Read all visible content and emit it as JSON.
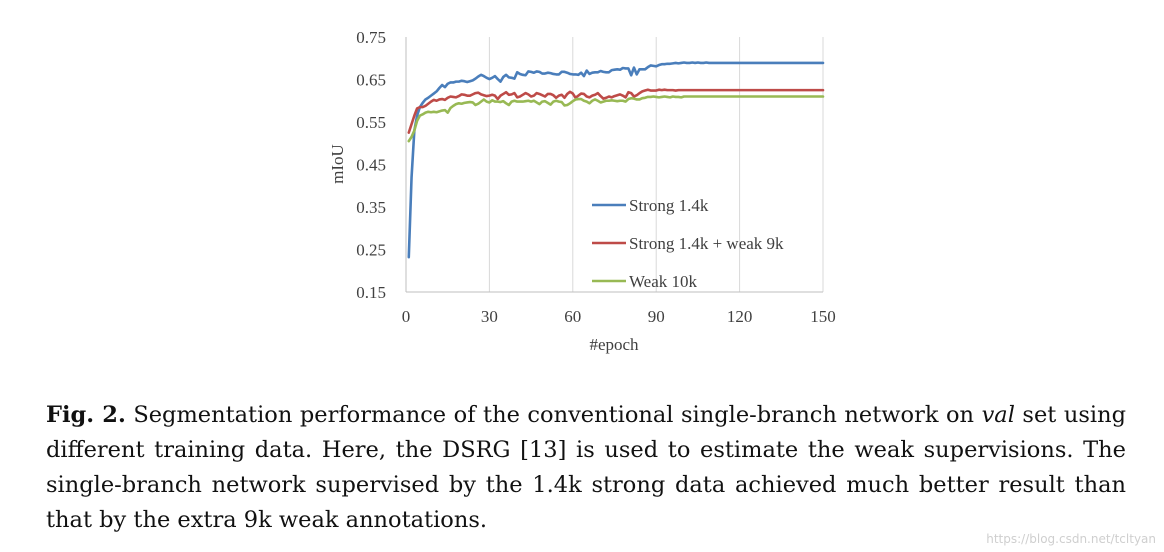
{
  "chart_data": {
    "type": "line",
    "xlabel": "#epoch",
    "ylabel": "mIoU",
    "xlim": [
      0,
      150
    ],
    "ylim": [
      0.15,
      0.75
    ],
    "xticks": [
      "0",
      "30",
      "60",
      "90",
      "120",
      "150"
    ],
    "yticks": [
      "0.75",
      "0.65",
      "0.55",
      "0.45",
      "0.35",
      "0.25",
      "0.15"
    ],
    "grid": "vertical",
    "legend_position": "center-right",
    "x": [
      1,
      2,
      3,
      4,
      5,
      6,
      7,
      8,
      9,
      10,
      11,
      12,
      13,
      14,
      15,
      16,
      17,
      18,
      19,
      20,
      21,
      22,
      23,
      24,
      25,
      26,
      27,
      28,
      29,
      30,
      31,
      32,
      33,
      34,
      35,
      36,
      37,
      38,
      39,
      40,
      41,
      42,
      43,
      44,
      45,
      46,
      47,
      48,
      49,
      50,
      51,
      52,
      53,
      54,
      55,
      56,
      57,
      58,
      59,
      60,
      61,
      62,
      63,
      64,
      65,
      66,
      67,
      68,
      69,
      70,
      71,
      72,
      73,
      74,
      75,
      76,
      77,
      78,
      79,
      80,
      81,
      82,
      83,
      84,
      85,
      86,
      87,
      88,
      89,
      90,
      91,
      92,
      93,
      94,
      95,
      96,
      97,
      98,
      99,
      100,
      101,
      102,
      103,
      104,
      105,
      106,
      107,
      108,
      109,
      110,
      111,
      112,
      113,
      114,
      115,
      116,
      117,
      118,
      119,
      120,
      121,
      122,
      123,
      124,
      125,
      126,
      127,
      128,
      129,
      130,
      131,
      132,
      133,
      134,
      135,
      136,
      137,
      138,
      139,
      140,
      141,
      142,
      143,
      144,
      145,
      146,
      147,
      148,
      149,
      150
    ],
    "series": [
      {
        "name": "Strong 1.4k",
        "color": "#4a7ebb",
        "values": [
          0.232,
          0.42,
          0.53,
          0.565,
          0.585,
          0.595,
          0.603,
          0.607,
          0.612,
          0.617,
          0.622,
          0.63,
          0.637,
          0.632,
          0.64,
          0.643,
          0.643,
          0.645,
          0.645,
          0.647,
          0.646,
          0.644,
          0.646,
          0.648,
          0.652,
          0.657,
          0.661,
          0.658,
          0.654,
          0.651,
          0.654,
          0.658,
          0.651,
          0.645,
          0.656,
          0.661,
          0.655,
          0.654,
          0.652,
          0.667,
          0.663,
          0.661,
          0.66,
          0.669,
          0.668,
          0.666,
          0.669,
          0.668,
          0.664,
          0.664,
          0.666,
          0.665,
          0.663,
          0.662,
          0.662,
          0.668,
          0.668,
          0.666,
          0.663,
          0.662,
          0.662,
          0.661,
          0.666,
          0.658,
          0.671,
          0.663,
          0.666,
          0.667,
          0.667,
          0.67,
          0.668,
          0.667,
          0.667,
          0.672,
          0.673,
          0.674,
          0.673,
          0.677,
          0.676,
          0.676,
          0.66,
          0.678,
          0.662,
          0.674,
          0.674,
          0.674,
          0.679,
          0.683,
          0.682,
          0.681,
          0.684,
          0.686,
          0.686,
          0.687,
          0.687,
          0.688,
          0.689,
          0.688,
          0.689,
          0.69,
          0.689,
          0.689,
          0.69,
          0.689,
          0.69,
          0.689,
          0.689,
          0.69,
          0.689,
          0.689,
          0.689,
          0.689,
          0.689,
          0.689,
          0.689,
          0.689,
          0.689,
          0.689,
          0.689,
          0.689,
          0.689,
          0.689,
          0.689,
          0.689,
          0.689,
          0.689,
          0.689,
          0.689,
          0.689,
          0.689,
          0.689,
          0.689,
          0.689,
          0.689,
          0.689,
          0.689,
          0.689,
          0.689,
          0.689,
          0.689,
          0.689,
          0.689,
          0.689,
          0.689,
          0.689,
          0.689,
          0.689,
          0.689,
          0.689,
          0.689
        ]
      },
      {
        "name": "Strong 1.4k + weak 9k",
        "color": "#be4b48",
        "values": [
          0.525,
          0.545,
          0.565,
          0.582,
          0.585,
          0.585,
          0.588,
          0.593,
          0.598,
          0.602,
          0.6,
          0.603,
          0.604,
          0.602,
          0.607,
          0.61,
          0.609,
          0.608,
          0.611,
          0.615,
          0.614,
          0.612,
          0.612,
          0.615,
          0.618,
          0.619,
          0.615,
          0.613,
          0.611,
          0.612,
          0.614,
          0.612,
          0.604,
          0.612,
          0.616,
          0.62,
          0.614,
          0.615,
          0.618,
          0.608,
          0.61,
          0.614,
          0.618,
          0.615,
          0.61,
          0.612,
          0.618,
          0.616,
          0.613,
          0.61,
          0.616,
          0.616,
          0.613,
          0.607,
          0.612,
          0.614,
          0.607,
          0.616,
          0.621,
          0.617,
          0.607,
          0.612,
          0.617,
          0.616,
          0.61,
          0.608,
          0.612,
          0.614,
          0.618,
          0.611,
          0.605,
          0.607,
          0.61,
          0.608,
          0.611,
          0.613,
          0.615,
          0.612,
          0.608,
          0.62,
          0.618,
          0.61,
          0.613,
          0.618,
          0.622,
          0.624,
          0.626,
          0.624,
          0.624,
          0.624,
          0.626,
          0.625,
          0.626,
          0.625,
          0.625,
          0.625,
          0.624,
          0.625,
          0.625,
          0.625,
          0.625,
          0.625,
          0.625,
          0.625,
          0.625,
          0.625,
          0.625,
          0.625,
          0.625,
          0.625,
          0.625,
          0.625,
          0.625,
          0.625,
          0.625,
          0.625,
          0.625,
          0.625,
          0.625,
          0.625,
          0.625,
          0.625,
          0.625,
          0.625,
          0.625,
          0.625,
          0.625,
          0.625,
          0.625,
          0.625,
          0.625,
          0.625,
          0.625,
          0.625,
          0.625,
          0.625,
          0.625,
          0.625,
          0.625,
          0.625,
          0.625,
          0.625,
          0.625,
          0.625,
          0.625,
          0.625,
          0.625,
          0.625,
          0.625,
          0.625
        ]
      },
      {
        "name": "Weak 10k",
        "color": "#98b954",
        "values": [
          0.505,
          0.515,
          0.53,
          0.553,
          0.565,
          0.568,
          0.572,
          0.574,
          0.573,
          0.574,
          0.573,
          0.575,
          0.577,
          0.578,
          0.572,
          0.583,
          0.588,
          0.592,
          0.594,
          0.593,
          0.595,
          0.596,
          0.597,
          0.596,
          0.59,
          0.593,
          0.598,
          0.603,
          0.598,
          0.596,
          0.601,
          0.598,
          0.598,
          0.597,
          0.599,
          0.594,
          0.59,
          0.598,
          0.6,
          0.598,
          0.598,
          0.598,
          0.599,
          0.6,
          0.598,
          0.6,
          0.596,
          0.592,
          0.598,
          0.599,
          0.595,
          0.591,
          0.598,
          0.6,
          0.598,
          0.597,
          0.589,
          0.59,
          0.594,
          0.599,
          0.603,
          0.604,
          0.604,
          0.6,
          0.598,
          0.594,
          0.6,
          0.603,
          0.6,
          0.596,
          0.598,
          0.6,
          0.6,
          0.601,
          0.6,
          0.599,
          0.6,
          0.6,
          0.598,
          0.604,
          0.606,
          0.605,
          0.603,
          0.603,
          0.606,
          0.607,
          0.609,
          0.609,
          0.61,
          0.609,
          0.608,
          0.609,
          0.61,
          0.609,
          0.608,
          0.61,
          0.609,
          0.609,
          0.608,
          0.61,
          0.61,
          0.61,
          0.61,
          0.61,
          0.61,
          0.61,
          0.61,
          0.61,
          0.61,
          0.61,
          0.61,
          0.61,
          0.61,
          0.61,
          0.61,
          0.61,
          0.61,
          0.61,
          0.61,
          0.61,
          0.61,
          0.61,
          0.61,
          0.61,
          0.61,
          0.61,
          0.61,
          0.61,
          0.61,
          0.61,
          0.61,
          0.61,
          0.61,
          0.61,
          0.61,
          0.61,
          0.61,
          0.61,
          0.61,
          0.61,
          0.61,
          0.61,
          0.61,
          0.61,
          0.61,
          0.61,
          0.61,
          0.61,
          0.61,
          0.61
        ]
      }
    ]
  },
  "caption": {
    "fig_label": "Fig. 2.",
    "text_before_italic": " Segmentation performance of the conventional single-branch network on ",
    "italic": "val",
    "text_after_italic": " set using different training data. Here, the DSRG [13] is used to estimate the weak supervisions. The single-branch network supervised by the 1.4k strong data achieved much better result than that by the extra 9k weak annotations."
  },
  "watermark": "https://blog.csdn.net/tcltyan"
}
